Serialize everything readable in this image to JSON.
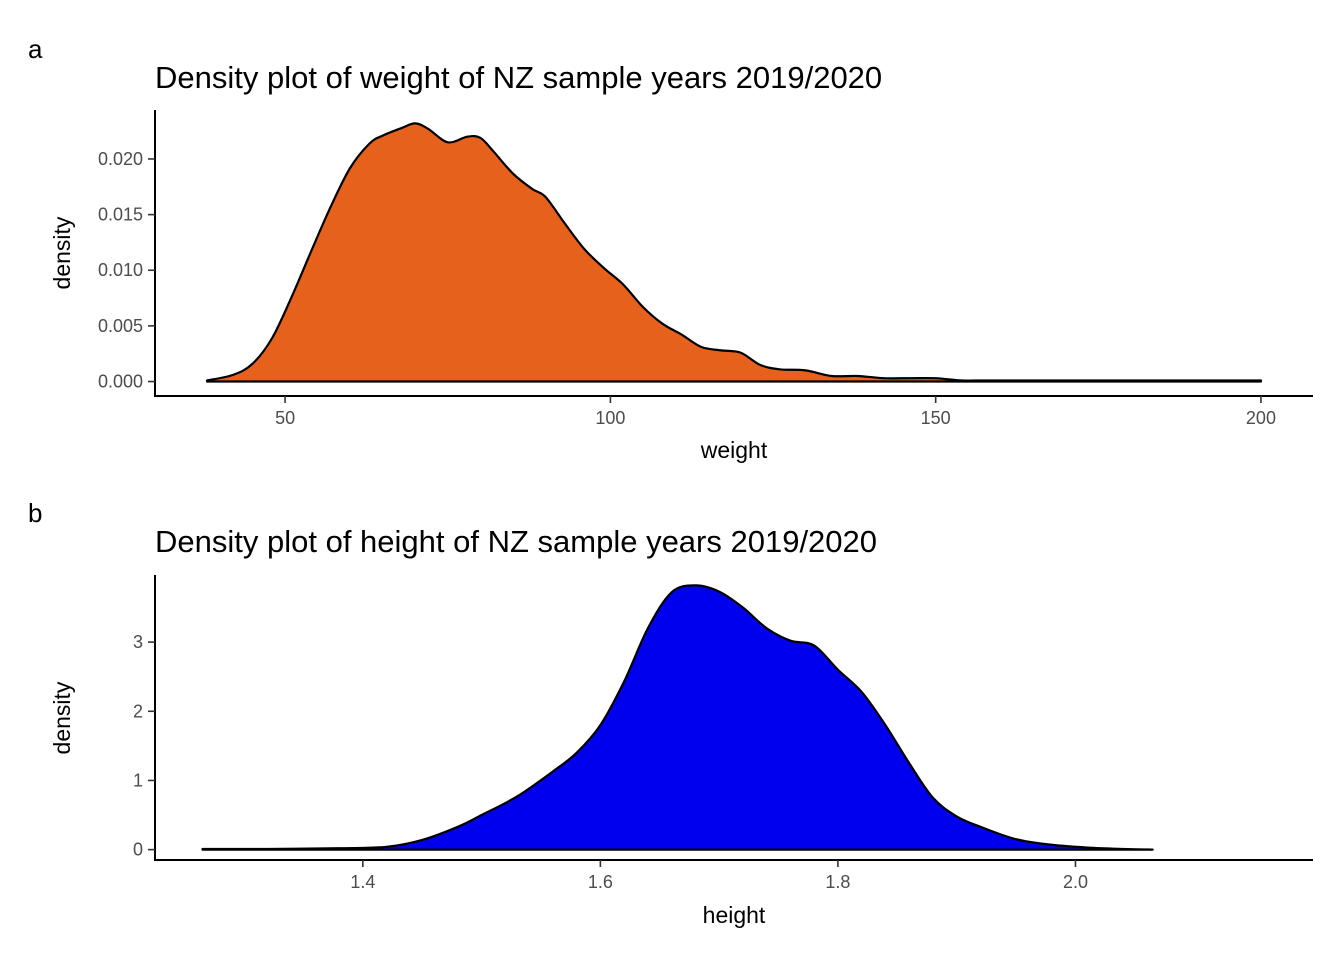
{
  "chart_data": [
    {
      "type": "area",
      "panel_tag": "a",
      "title": "Density plot of weight of NZ sample years 2019/2020",
      "xlabel": "weight",
      "ylabel": "density",
      "fill": "#E6621C",
      "xlim": [
        30,
        208
      ],
      "ylim": [
        -0.0013,
        0.0244
      ],
      "x_ticks": [
        50,
        100,
        150,
        200
      ],
      "x_tick_labels": [
        "50",
        "100",
        "150",
        "200"
      ],
      "y_ticks": [
        0,
        0.005,
        0.01,
        0.015,
        0.02
      ],
      "y_tick_labels": [
        "0.000",
        "0.005",
        "0.010",
        "0.015",
        "0.020"
      ],
      "grid": false,
      "legend": "none",
      "x": [
        38,
        42,
        45,
        48,
        51,
        54,
        57,
        60,
        63,
        65,
        68,
        70,
        72,
        75,
        78,
        80,
        82,
        85,
        88,
        90,
        93,
        96,
        99,
        102,
        105,
        108,
        111,
        114,
        117,
        120,
        123,
        126,
        130,
        134,
        138,
        142,
        146,
        150,
        154,
        158,
        165,
        175,
        185,
        195,
        200
      ],
      "y": [
        0.0001,
        0.0006,
        0.0016,
        0.0039,
        0.0076,
        0.0117,
        0.0157,
        0.0192,
        0.0214,
        0.0221,
        0.0228,
        0.0232,
        0.0227,
        0.0215,
        0.022,
        0.0219,
        0.0207,
        0.0187,
        0.0173,
        0.0166,
        0.0142,
        0.0119,
        0.0102,
        0.0087,
        0.0067,
        0.0052,
        0.0042,
        0.0031,
        0.0028,
        0.0026,
        0.0015,
        0.0011,
        0.001,
        0.0005,
        0.0005,
        0.0003,
        0.0003,
        0.0003,
        0.0001,
        0.0001,
        0.0001,
        0.0001,
        0.0001,
        0.0001,
        0.0001
      ]
    },
    {
      "type": "area",
      "panel_tag": "b",
      "title": "Density plot of height of NZ sample years 2019/2020",
      "xlabel": "height",
      "ylabel": "density",
      "fill": "#0000EE",
      "xlim": [
        1.225,
        2.2
      ],
      "ylim": [
        -0.15,
        3.97
      ],
      "x_ticks": [
        1.4,
        1.6,
        1.8,
        2.0
      ],
      "x_tick_labels": [
        "1.4",
        "1.6",
        "1.8",
        "2.0"
      ],
      "y_ticks": [
        0,
        1,
        2,
        3
      ],
      "y_tick_labels": [
        "0",
        "1",
        "2",
        "3"
      ],
      "grid": false,
      "legend": "none",
      "x": [
        1.265,
        1.32,
        1.38,
        1.42,
        1.45,
        1.48,
        1.5,
        1.53,
        1.56,
        1.58,
        1.6,
        1.62,
        1.64,
        1.66,
        1.68,
        1.7,
        1.72,
        1.74,
        1.76,
        1.78,
        1.8,
        1.82,
        1.84,
        1.86,
        1.88,
        1.9,
        1.92,
        1.95,
        1.98,
        2.01,
        2.04,
        2.065
      ],
      "y": [
        0.01,
        0.01,
        0.02,
        0.04,
        0.14,
        0.33,
        0.5,
        0.77,
        1.13,
        1.4,
        1.8,
        2.43,
        3.2,
        3.72,
        3.82,
        3.73,
        3.5,
        3.2,
        3.02,
        2.95,
        2.6,
        2.28,
        1.8,
        1.25,
        0.75,
        0.48,
        0.33,
        0.15,
        0.07,
        0.03,
        0.01,
        0.0
      ]
    }
  ]
}
